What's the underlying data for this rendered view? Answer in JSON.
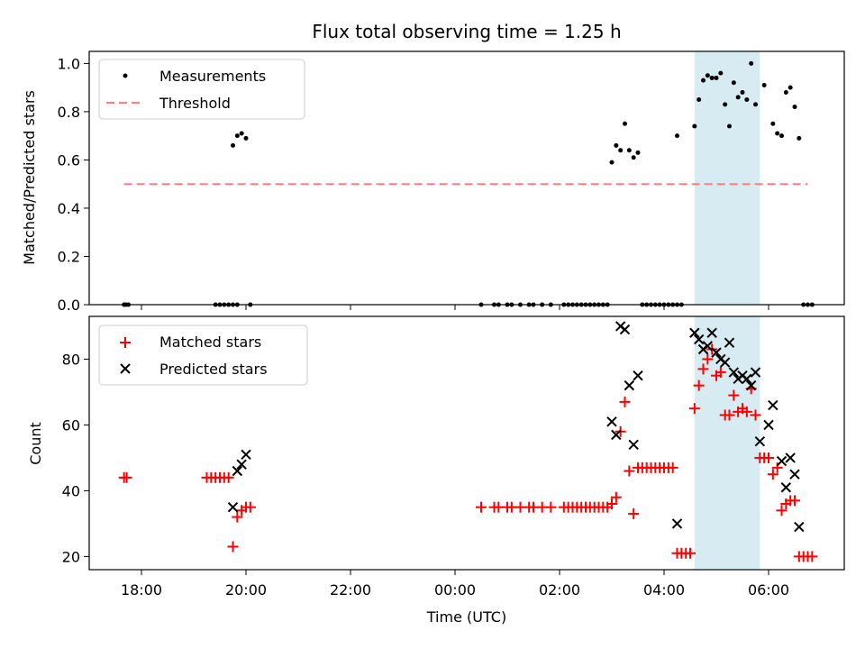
{
  "chart_data": [
    {
      "type": "scatter",
      "title": "Flux total observing time = 1.25 h",
      "xlabel": "",
      "ylabel": "Matched/Predicted stars",
      "ylim": [
        0,
        1.05
      ],
      "yticks": [
        "0.0",
        "0.2",
        "0.4",
        "0.6",
        "0.8",
        "1.0"
      ],
      "shaded_interval": [
        "04:35",
        "05:50"
      ],
      "legend": {
        "position": "top-left",
        "entries": [
          "Measurements",
          "Threshold"
        ]
      },
      "threshold": {
        "name": "Threshold",
        "value": 0.5,
        "x_range": [
          "17:40",
          "06:45"
        ],
        "color": "#ff7f7f"
      },
      "series": [
        {
          "name": "Measurements",
          "color": "#000000",
          "points": [
            [
              "17:40",
              0
            ],
            [
              "17:42",
              0
            ],
            [
              "17:45",
              0
            ],
            [
              "19:25",
              0
            ],
            [
              "19:30",
              0
            ],
            [
              "19:35",
              0
            ],
            [
              "19:40",
              0
            ],
            [
              "19:45",
              0
            ],
            [
              "19:50",
              0
            ],
            [
              "19:45",
              0.66
            ],
            [
              "19:50",
              0.7
            ],
            [
              "19:55",
              0.71
            ],
            [
              "20:00",
              0.69
            ],
            [
              "20:05",
              0
            ],
            [
              "00:30",
              0
            ],
            [
              "00:45",
              0
            ],
            [
              "00:50",
              0
            ],
            [
              "01:00",
              0
            ],
            [
              "01:05",
              0
            ],
            [
              "01:15",
              0
            ],
            [
              "01:25",
              0
            ],
            [
              "01:30",
              0
            ],
            [
              "01:40",
              0
            ],
            [
              "01:50",
              0
            ],
            [
              "02:05",
              0
            ],
            [
              "02:10",
              0
            ],
            [
              "02:15",
              0
            ],
            [
              "02:20",
              0
            ],
            [
              "02:25",
              0
            ],
            [
              "02:30",
              0
            ],
            [
              "02:35",
              0
            ],
            [
              "02:40",
              0
            ],
            [
              "02:45",
              0
            ],
            [
              "02:50",
              0
            ],
            [
              "02:55",
              0
            ],
            [
              "03:00",
              0.59
            ],
            [
              "03:05",
              0.66
            ],
            [
              "03:10",
              0.64
            ],
            [
              "03:15",
              0.75
            ],
            [
              "03:20",
              0.64
            ],
            [
              "03:25",
              0.61
            ],
            [
              "03:30",
              0.63
            ],
            [
              "03:35",
              0
            ],
            [
              "03:40",
              0
            ],
            [
              "03:45",
              0
            ],
            [
              "03:50",
              0
            ],
            [
              "03:55",
              0
            ],
            [
              "04:00",
              0
            ],
            [
              "04:05",
              0
            ],
            [
              "04:10",
              0
            ],
            [
              "04:15",
              0
            ],
            [
              "04:20",
              0
            ],
            [
              "04:15",
              0.7
            ],
            [
              "04:35",
              0.74
            ],
            [
              "04:40",
              0.85
            ],
            [
              "04:45",
              0.93
            ],
            [
              "04:50",
              0.95
            ],
            [
              "04:55",
              0.94
            ],
            [
              "05:00",
              0.94
            ],
            [
              "05:05",
              0.96
            ],
            [
              "05:10",
              0.83
            ],
            [
              "05:15",
              0.74
            ],
            [
              "05:20",
              0.92
            ],
            [
              "05:25",
              0.86
            ],
            [
              "05:30",
              0.88
            ],
            [
              "05:35",
              0.85
            ],
            [
              "05:40",
              1.0
            ],
            [
              "05:45",
              0.83
            ],
            [
              "05:55",
              0.91
            ],
            [
              "06:05",
              0.75
            ],
            [
              "06:10",
              0.71
            ],
            [
              "06:15",
              0.7
            ],
            [
              "06:20",
              0.88
            ],
            [
              "06:25",
              0.9
            ],
            [
              "06:30",
              0.82
            ],
            [
              "06:35",
              0.69
            ],
            [
              "06:40",
              0
            ],
            [
              "06:45",
              0
            ],
            [
              "06:50",
              0
            ]
          ]
        }
      ]
    },
    {
      "type": "scatter",
      "title": "",
      "xlabel": "Time (UTC)",
      "ylabel": "Count",
      "ylim": [
        16,
        93
      ],
      "yticks": [
        "20",
        "40",
        "60",
        "80"
      ],
      "xticks": [
        "18:00",
        "20:00",
        "22:00",
        "00:00",
        "02:00",
        "04:00",
        "06:00"
      ],
      "shaded_interval": [
        "04:35",
        "05:50"
      ],
      "legend": {
        "position": "top-left",
        "entries": [
          "Matched stars",
          "Predicted stars"
        ]
      },
      "series": [
        {
          "name": "Matched stars",
          "marker": "plus",
          "color": "#ff0000",
          "points": [
            [
              "17:40",
              44
            ],
            [
              "17:43",
              44
            ],
            [
              "19:15",
              44
            ],
            [
              "19:20",
              44
            ],
            [
              "19:25",
              44
            ],
            [
              "19:30",
              44
            ],
            [
              "19:35",
              44
            ],
            [
              "19:40",
              44
            ],
            [
              "19:45",
              23
            ],
            [
              "19:50",
              32
            ],
            [
              "19:55",
              34
            ],
            [
              "20:00",
              35
            ],
            [
              "20:05",
              35
            ],
            [
              "00:30",
              35
            ],
            [
              "00:45",
              35
            ],
            [
              "00:50",
              35
            ],
            [
              "01:00",
              35
            ],
            [
              "01:05",
              35
            ],
            [
              "01:15",
              35
            ],
            [
              "01:25",
              35
            ],
            [
              "01:30",
              35
            ],
            [
              "01:40",
              35
            ],
            [
              "01:50",
              35
            ],
            [
              "02:05",
              35
            ],
            [
              "02:10",
              35
            ],
            [
              "02:15",
              35
            ],
            [
              "02:20",
              35
            ],
            [
              "02:25",
              35
            ],
            [
              "02:30",
              35
            ],
            [
              "02:35",
              35
            ],
            [
              "02:40",
              35
            ],
            [
              "02:45",
              35
            ],
            [
              "02:50",
              35
            ],
            [
              "02:55",
              35
            ],
            [
              "03:00",
              36
            ],
            [
              "03:05",
              38
            ],
            [
              "03:10",
              58
            ],
            [
              "03:15",
              67
            ],
            [
              "03:20",
              46
            ],
            [
              "03:25",
              33
            ],
            [
              "03:30",
              47
            ],
            [
              "03:35",
              47
            ],
            [
              "03:40",
              47
            ],
            [
              "03:45",
              47
            ],
            [
              "03:50",
              47
            ],
            [
              "03:55",
              47
            ],
            [
              "04:00",
              47
            ],
            [
              "04:05",
              47
            ],
            [
              "04:10",
              47
            ],
            [
              "04:15",
              21
            ],
            [
              "04:20",
              21
            ],
            [
              "04:25",
              21
            ],
            [
              "04:30",
              21
            ],
            [
              "04:35",
              65
            ],
            [
              "04:40",
              72
            ],
            [
              "04:45",
              77
            ],
            [
              "04:50",
              80
            ],
            [
              "04:55",
              83
            ],
            [
              "05:00",
              75
            ],
            [
              "05:05",
              76
            ],
            [
              "05:10",
              63
            ],
            [
              "05:15",
              63
            ],
            [
              "05:20",
              69
            ],
            [
              "05:25",
              64
            ],
            [
              "05:30",
              65
            ],
            [
              "05:35",
              64
            ],
            [
              "05:40",
              71
            ],
            [
              "05:45",
              63
            ],
            [
              "05:50",
              50
            ],
            [
              "05:55",
              50
            ],
            [
              "06:00",
              50
            ],
            [
              "06:05",
              45
            ],
            [
              "06:10",
              47
            ],
            [
              "06:15",
              34
            ],
            [
              "06:20",
              36
            ],
            [
              "06:25",
              37
            ],
            [
              "06:30",
              37
            ],
            [
              "06:35",
              20
            ],
            [
              "06:40",
              20
            ],
            [
              "06:45",
              20
            ],
            [
              "06:50",
              20
            ]
          ]
        },
        {
          "name": "Predicted stars",
          "marker": "x",
          "color": "#000000",
          "points": [
            [
              "19:45",
              35
            ],
            [
              "19:50",
              46
            ],
            [
              "19:55",
              48
            ],
            [
              "20:00",
              51
            ],
            [
              "03:00",
              61
            ],
            [
              "03:05",
              57
            ],
            [
              "03:10",
              90
            ],
            [
              "03:15",
              89
            ],
            [
              "03:20",
              72
            ],
            [
              "03:25",
              54
            ],
            [
              "03:30",
              75
            ],
            [
              "04:15",
              30
            ],
            [
              "04:35",
              88
            ],
            [
              "04:40",
              86
            ],
            [
              "04:45",
              83
            ],
            [
              "04:50",
              84
            ],
            [
              "04:55",
              88
            ],
            [
              "05:00",
              82
            ],
            [
              "05:05",
              80
            ],
            [
              "05:10",
              79
            ],
            [
              "05:15",
              85
            ],
            [
              "05:20",
              76
            ],
            [
              "05:25",
              74
            ],
            [
              "05:30",
              75
            ],
            [
              "05:35",
              74
            ],
            [
              "05:40",
              72
            ],
            [
              "05:45",
              76
            ],
            [
              "05:50",
              55
            ],
            [
              "06:00",
              60
            ],
            [
              "06:05",
              66
            ],
            [
              "06:15",
              49
            ],
            [
              "06:20",
              41
            ],
            [
              "06:25",
              50
            ],
            [
              "06:30",
              45
            ],
            [
              "06:35",
              29
            ]
          ]
        }
      ]
    }
  ]
}
